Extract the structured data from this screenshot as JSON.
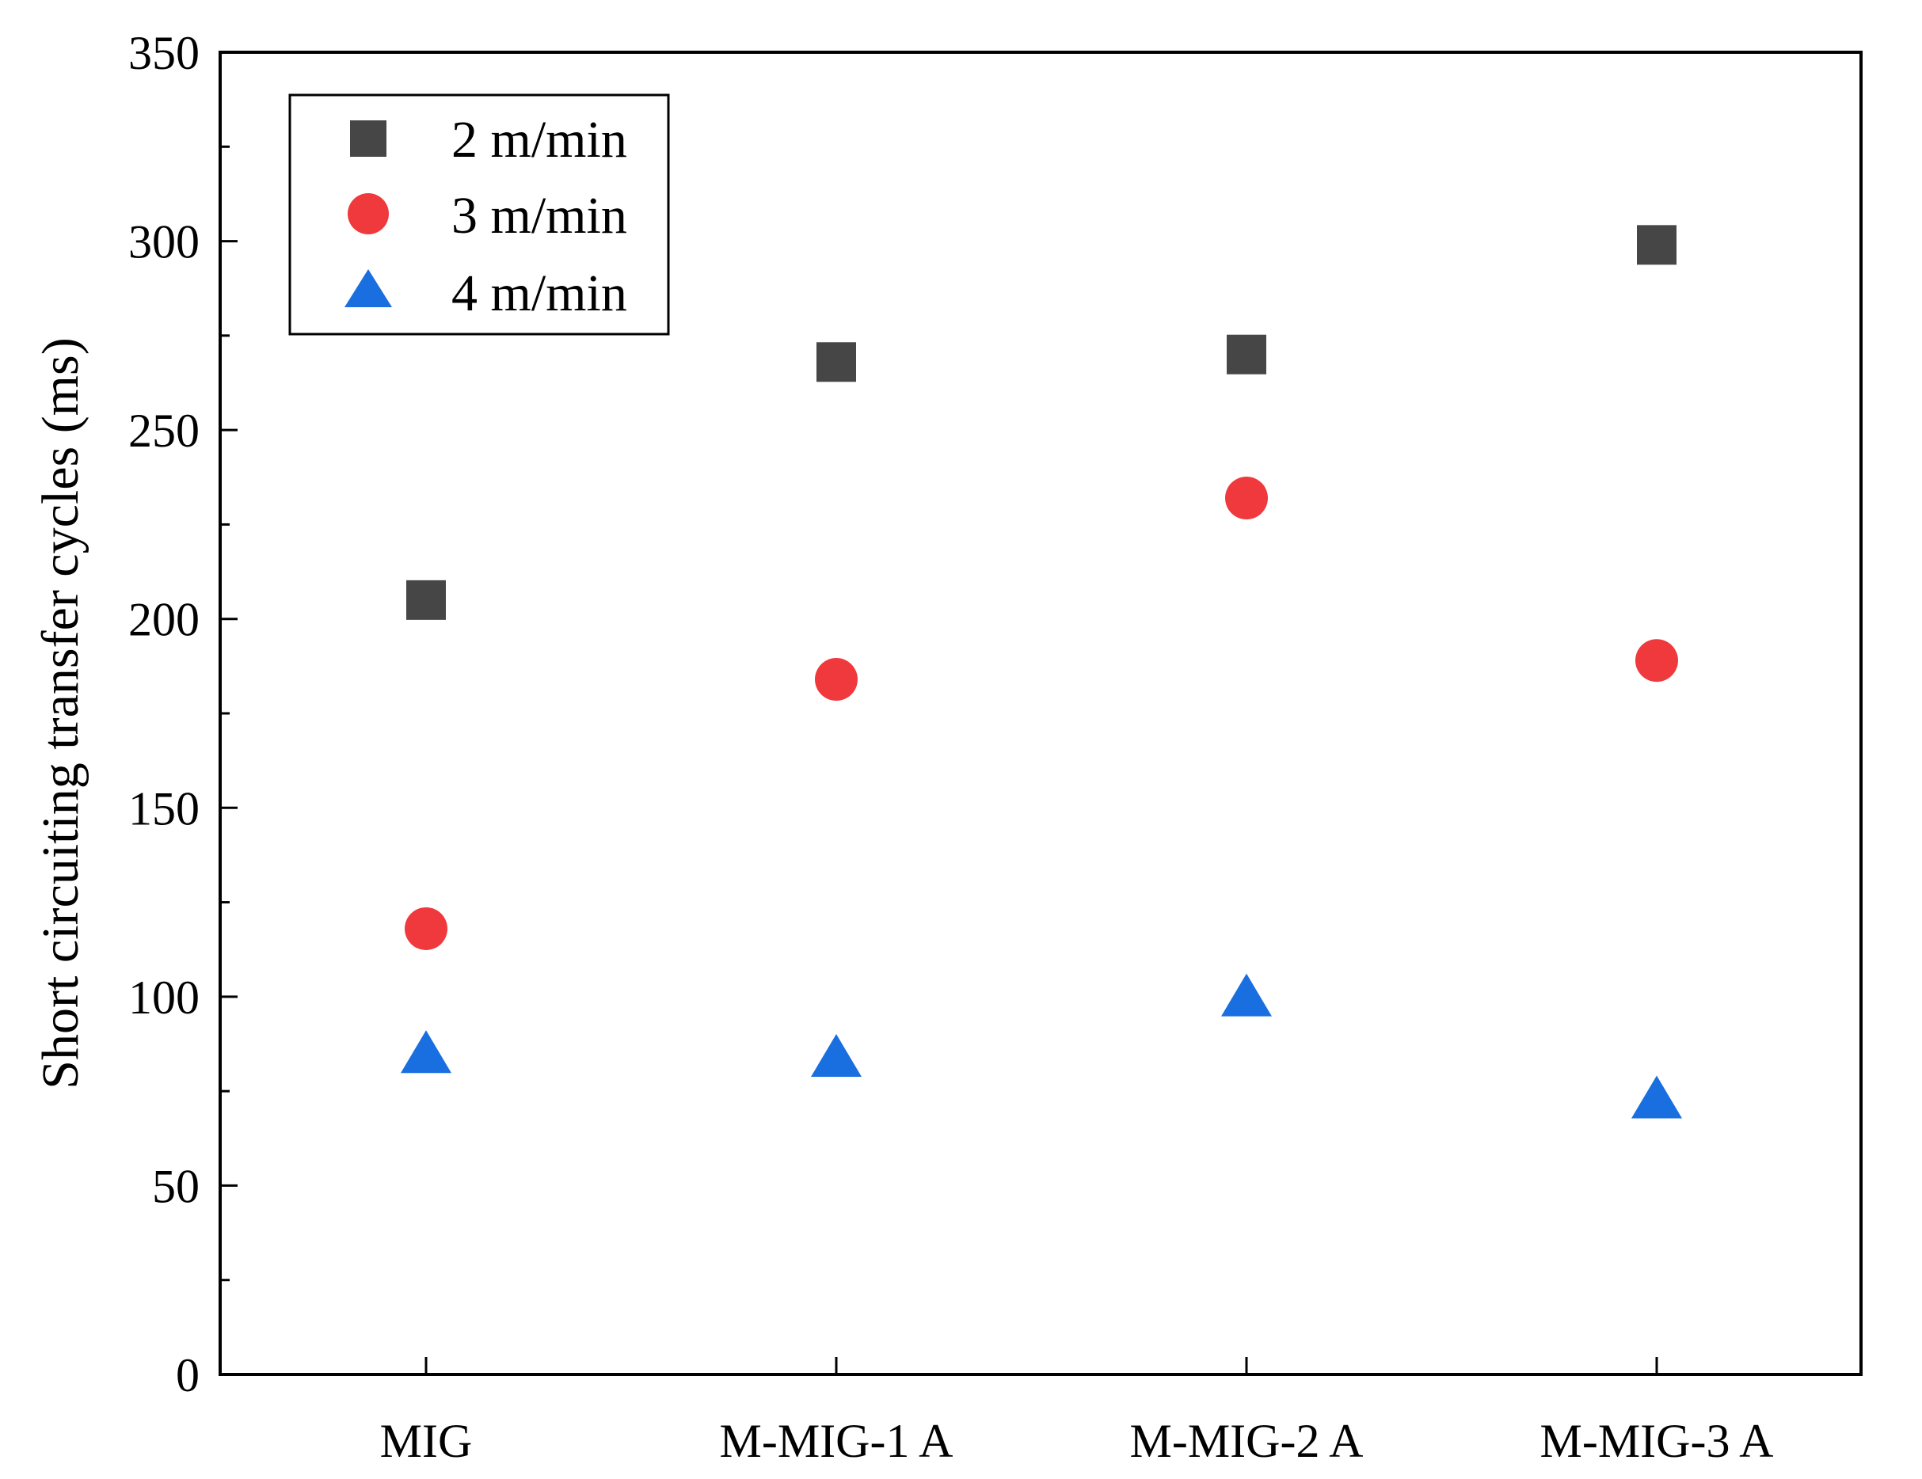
{
  "chart_data": {
    "type": "scatter",
    "title": "",
    "xlabel": "",
    "ylabel": "Short circuiting transfer cycles (ms)",
    "categories": [
      "MIG",
      "M-MIG-1 A",
      "M-MIG-2 A",
      "M-MIG-3 A"
    ],
    "ylim": [
      0,
      350
    ],
    "yticks": [
      0,
      50,
      100,
      150,
      200,
      250,
      300,
      350
    ],
    "ytick_labels": [
      "0",
      "50",
      "100",
      "150",
      "200",
      "250",
      "300",
      "350"
    ],
    "grid": false,
    "legend_position": "top-left",
    "series": [
      {
        "name": "2 m/min",
        "marker": "square",
        "color": "#464646",
        "values": [
          205,
          268,
          270,
          299
        ]
      },
      {
        "name": "3 m/min",
        "marker": "circle",
        "color": "#f0393c",
        "values": [
          118,
          184,
          232,
          189
        ]
      },
      {
        "name": "4 m/min",
        "marker": "triangle",
        "color": "#1a6fe0",
        "values": [
          84,
          83,
          99,
          72
        ]
      }
    ]
  }
}
